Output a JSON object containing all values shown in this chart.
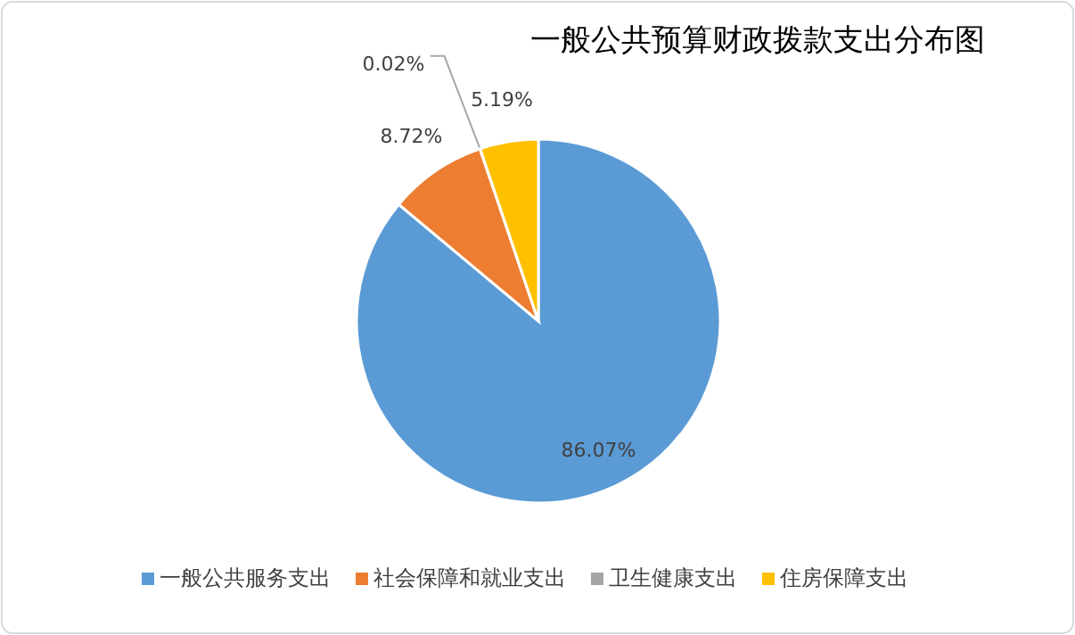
{
  "chart_data": {
    "type": "pie",
    "title": "一般公共预算财政拨款支出分布图",
    "categories": [
      "一般公共服务支出",
      "社会保障和就业支出",
      "卫生健康支出",
      "住房保障支出"
    ],
    "values": [
      86.07,
      8.72,
      0.02,
      5.19
    ],
    "value_labels": [
      "86.07%",
      "8.72%",
      "0.02%",
      "5.19%"
    ],
    "colors": [
      "#5b9bd5",
      "#ed7d31",
      "#a5a5a5",
      "#ffc000"
    ],
    "legend": "bottom"
  }
}
